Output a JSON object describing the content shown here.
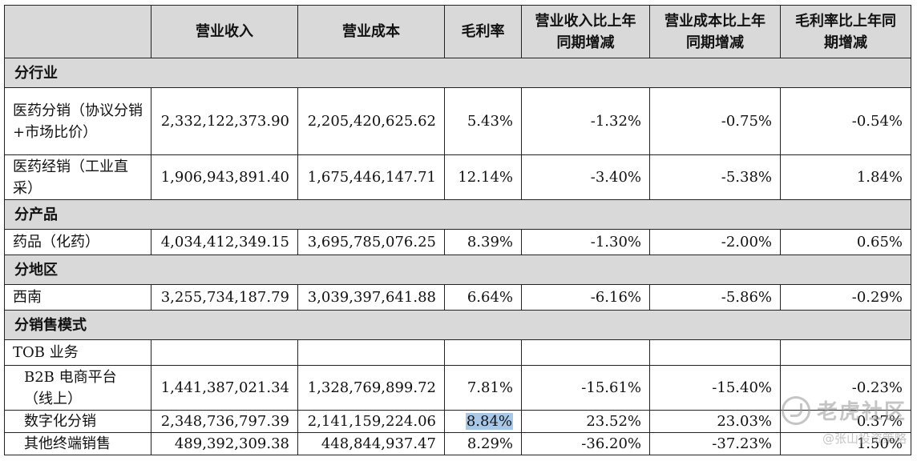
{
  "table": {
    "headers": [
      "",
      "营业收入",
      "营业成本",
      "毛利率",
      "营业收入比上年同期增减",
      "营业成本比上年同期增减",
      "毛利率比上年同期增减"
    ],
    "sections": {
      "industry": "分行业",
      "product": "分产品",
      "region": "分地区",
      "sales_model": "分销售模式"
    },
    "rows": {
      "pharma_distribution": {
        "label": "医药分销（协议分销+市场比价）",
        "revenue": "2,332,122,373.90",
        "cost": "2,205,420,625.62",
        "margin": "5.43%",
        "rev_change": "-1.32%",
        "cost_change": "-0.75%",
        "margin_change": "-0.54%"
      },
      "pharma_dealer": {
        "label": "医药经销（工业直采）",
        "revenue": "1,906,943,891.40",
        "cost": "1,675,446,147.71",
        "margin": "12.14%",
        "rev_change": "-3.40%",
        "cost_change": "-5.38%",
        "margin_change": "1.84%"
      },
      "drugs": {
        "label": "药品（化药）",
        "revenue": "4,034,412,349.15",
        "cost": "3,695,785,076.25",
        "margin": "8.39%",
        "rev_change": "-1.30%",
        "cost_change": "-2.00%",
        "margin_change": "0.65%"
      },
      "southwest": {
        "label": "西南",
        "revenue": "3,255,734,187.79",
        "cost": "3,039,397,641.88",
        "margin": "6.64%",
        "rev_change": "-6.16%",
        "cost_change": "-5.86%",
        "margin_change": "-0.29%"
      },
      "tob": {
        "label": "TOB 业务"
      },
      "b2b": {
        "label": "B2B 电商平台（线上）",
        "revenue": "1,441,387,021.34",
        "cost": "1,328,769,899.72",
        "margin": "7.81%",
        "rev_change": "-15.61%",
        "cost_change": "-15.40%",
        "margin_change": "-0.23%"
      },
      "digital": {
        "label": "数字化分销",
        "revenue": "2,348,736,797.39",
        "cost": "2,141,159,224.06",
        "margin": "8.84%",
        "rev_change": "23.52%",
        "cost_change": "23.03%",
        "margin_change": "0.37%"
      },
      "other_terminal": {
        "label": "其他终端销售",
        "revenue": "489,392,309.38",
        "cost": "448,844,937.47",
        "margin": "8.29%",
        "rev_change": "-36.20%",
        "cost_change": "-37.23%",
        "margin_change": "1.50%"
      }
    }
  },
  "watermark": {
    "logo_text": "老虎社区",
    "handle": "@张山投资策略",
    "icon": "tiger-community-logo-icon"
  },
  "colors": {
    "header_bg": "#d9d9d9",
    "highlight": "#a8c8e8"
  }
}
